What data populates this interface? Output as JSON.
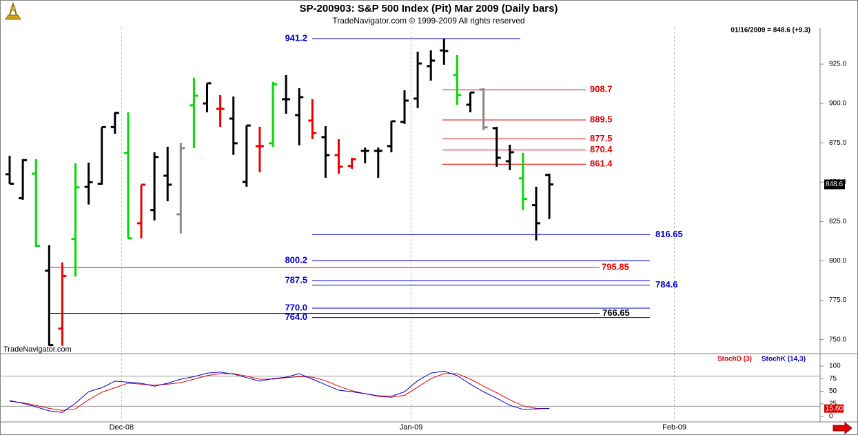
{
  "chart_data": {
    "type": "ohlc",
    "title": "SP-200903:  S&P 500 Index (Pit) Mar 2009  (Daily bars)",
    "subtitle": "TradeNavigator.com © 1999-2009 All rights reserved",
    "info": "01/16/2009 = 848.6 (+9.3)",
    "watermark": "TradeNavigator.com",
    "categories": [
      null,
      null,
      null,
      null,
      null,
      null,
      null,
      null,
      null,
      "Dec-08",
      null,
      null,
      null,
      null,
      null,
      null,
      null,
      null,
      null,
      null,
      null,
      null,
      null,
      null,
      null,
      null,
      null,
      null,
      null,
      null,
      null,
      "Jan-09",
      null,
      null,
      null,
      null,
      null,
      null,
      null,
      null,
      null,
      null,
      null,
      null,
      null,
      null,
      null,
      null,
      null,
      null,
      null,
      "Feb-09"
    ],
    "open": [
      855,
      839.8,
      855.4,
      793.8,
      757,
      813.9,
      847,
      849,
      885,
      868.6,
      823.9,
      832.3,
      854.1,
      829.6,
      898.8,
      900,
      896.6,
      890.4,
      850.2,
      872.9,
      874.7,
      902.7,
      892.6,
      889.1,
      878.6,
      867.2,
      860.3,
      869.9,
      869.9,
      872.9,
      888.3,
      903.1,
      923.7,
      933.7,
      918,
      899.2,
      908.8,
      884.3,
      863.3,
      852.4,
      835.4,
      854.6,
      null,
      null,
      null,
      null,
      null,
      null,
      null,
      null,
      null,
      null
    ],
    "high": [
      866.8,
      864.6,
      864.6,
      810,
      799,
      862,
      862.4,
      885,
      894.4,
      894.4,
      848.4,
      869,
      872.5,
      875,
      916.3,
      912.8,
      905.3,
      904.4,
      886,
      885.2,
      913.6,
      918,
      909.7,
      902.7,
      885.6,
      877.3,
      865.5,
      872,
      872,
      888.7,
      908.4,
      932.9,
      933.7,
      941.2,
      930.7,
      907,
      909.7,
      885.2,
      873.8,
      868.6,
      847.1,
      855.4,
      null,
      null,
      null,
      null,
      null,
      null,
      null,
      null,
      null,
      null
    ],
    "low": [
      848.9,
      838.8,
      809,
      746,
      746,
      790,
      835.8,
      848.4,
      880.8,
      814.3,
      814.3,
      825.7,
      837.9,
      817.4,
      871.6,
      894.4,
      885.2,
      867.3,
      847.1,
      856.3,
      872.5,
      893.5,
      873.4,
      877.3,
      852.8,
      855.4,
      858.5,
      862,
      852.8,
      869,
      887,
      897,
      914.5,
      924.6,
      899.2,
      894.4,
      883,
      859.8,
      857.6,
      832.3,
      813,
      826.6,
      null,
      null,
      null,
      null,
      null,
      null,
      null,
      null,
      null,
      null
    ],
    "close": [
      849,
      864,
      809.5,
      746.5,
      790.3,
      846.7,
      850,
      885,
      894,
      814.3,
      848.4,
      866,
      848.4,
      871.6,
      904.9,
      912.8,
      896.6,
      874.7,
      886,
      872.9,
      912.3,
      902.7,
      904,
      881.3,
      867.2,
      859.8,
      864.6,
      869.9,
      869.9,
      888.7,
      901.8,
      925.4,
      927.2,
      933.3,
      905.3,
      907,
      884.8,
      865.5,
      869,
      839.3,
      823.9,
      848.6,
      null,
      null,
      null,
      null,
      null,
      null,
      null,
      null,
      null,
      null
    ],
    "colors": [
      "#000000",
      "#000000",
      "#00dd00",
      "#000000",
      "#ee0000",
      "#00dd00",
      "#000000",
      "#000000",
      "#000000",
      "#00dd00",
      "#ee0000",
      "#000000",
      "#000000",
      "#888888",
      "#00dd00",
      "#000000",
      "#ee0000",
      "#000000",
      "#000000",
      "#ee0000",
      "#00dd00",
      "#000000",
      "#000000",
      "#ee0000",
      "#000000",
      "#ee0000",
      "#ee0000",
      "#000000",
      "#000000",
      "#000000",
      "#000000",
      "#000000",
      "#000000",
      "#000000",
      "#00dd00",
      "#000000",
      "#888888",
      "#000000",
      "#000000",
      "#00dd00",
      "#000000",
      "#000000",
      null,
      null,
      null,
      null,
      null,
      null,
      null,
      null,
      null,
      null
    ],
    "ylim": [
      742.4,
      948.2
    ],
    "yticks": [
      {
        "value": 750,
        "label": "750.0"
      },
      {
        "value": 775,
        "label": "775.0"
      },
      {
        "value": 800,
        "label": "800.0"
      },
      {
        "value": 825,
        "label": "825.0"
      },
      {
        "value": 850,
        "label": "850.0"
      },
      {
        "value": 875,
        "label": "875.0"
      },
      {
        "value": 900,
        "label": "900.0"
      },
      {
        "value": 925,
        "label": "925.0"
      }
    ],
    "levels": [
      {
        "value": 941.2,
        "color": "#0000cc"
      },
      {
        "value": 908.7,
        "color": "#e00000"
      },
      {
        "value": 889.5,
        "color": "#e00000"
      },
      {
        "value": 877.5,
        "color": "#e00000"
      },
      {
        "value": 870.4,
        "color": "#e00000"
      },
      {
        "value": 861.4,
        "color": "#e00000"
      },
      {
        "value": 816.65,
        "color": "#0000cc"
      },
      {
        "value": 800.2,
        "color": "#0000cc"
      },
      {
        "value": 795.85,
        "color": "#e00000"
      },
      {
        "value": 787.5,
        "color": "#0000cc"
      },
      {
        "value": 784.6,
        "color": "#0000cc"
      },
      {
        "value": 770,
        "label": "770.0",
        "color": "#0000cc"
      },
      {
        "value": 766.65,
        "color": "#000000"
      },
      {
        "value": 764,
        "label": "764.0",
        "color": "#0000cc"
      }
    ],
    "indicator": {
      "type": "line",
      "ylim": [
        -8.2,
        115.1
      ],
      "yticks": [
        0,
        25,
        50,
        75,
        100
      ],
      "hlines": [
        80,
        20
      ],
      "last_label": "15.60",
      "series": [
        {
          "name": "StochD (3)",
          "color": "#e00000",
          "values": [
            30,
            27,
            22,
            16,
            12,
            15,
            33,
            48,
            57,
            66,
            64,
            62,
            64,
            67,
            74,
            81,
            85,
            85,
            80,
            74,
            74,
            77,
            79,
            78,
            71,
            60,
            51,
            45,
            40,
            38,
            42,
            58,
            75,
            85,
            85,
            74,
            60,
            47,
            33,
            21,
            16,
            15.6,
            null,
            null,
            null,
            null,
            null,
            null,
            null,
            null,
            null,
            null
          ]
        },
        {
          "name": "StochK (14,3)",
          "color": "#0000cc",
          "values": [
            31.5,
            26,
            19,
            11,
            8,
            26,
            49,
            57,
            70,
            68,
            66,
            60,
            66,
            74,
            79,
            86,
            88,
            84,
            77,
            70,
            75,
            78,
            85,
            74,
            63,
            52,
            49,
            45,
            41,
            40,
            49,
            71,
            86,
            90,
            81,
            64,
            49,
            36,
            22,
            14,
            15,
            16,
            null,
            null,
            null,
            null,
            null,
            null,
            null,
            null,
            null,
            null
          ]
        }
      ]
    }
  }
}
